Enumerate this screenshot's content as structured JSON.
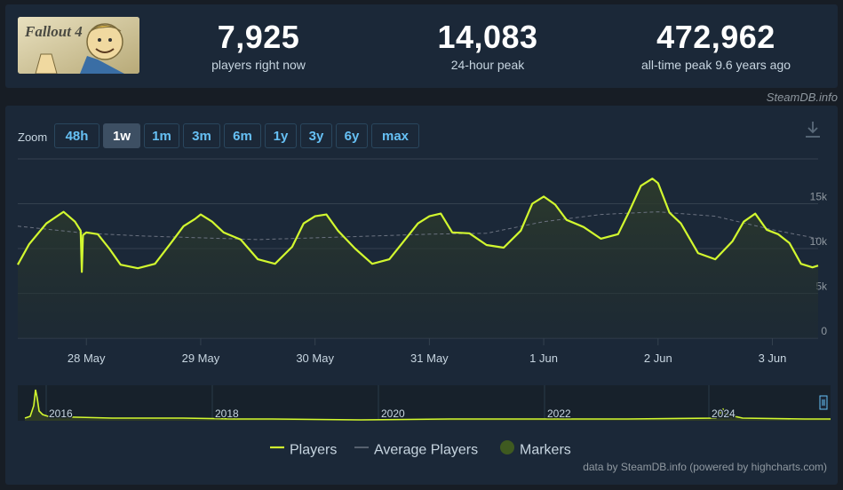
{
  "stats": {
    "current": {
      "value": "7,925",
      "label": "players right now"
    },
    "peak24": {
      "value": "14,083",
      "label": "24-hour peak"
    },
    "alltime": {
      "value": "472,962",
      "label": "all-time peak 9.6 years ago"
    }
  },
  "game_logo_text": "Fallout 4",
  "brand": "SteamDB.info",
  "zoom": {
    "label": "Zoom",
    "options": [
      "48h",
      "1w",
      "1m",
      "3m",
      "6m",
      "1y",
      "3y",
      "6y",
      "max"
    ],
    "selected": "1w"
  },
  "colors": {
    "players": "#d2f82f",
    "average": "#6b7280",
    "markers": "#3f5a20",
    "active_zoom_bg": "#3d4f63",
    "zoom_text": "#66c0f4"
  },
  "icons": {
    "download": "download-icon"
  },
  "legend": [
    {
      "name": "Players",
      "symbol": "line"
    },
    {
      "name": "Average Players",
      "symbol": "dashed-line"
    },
    {
      "name": "Markers",
      "symbol": "circle"
    }
  ],
  "credits": "data by SteamDB.info (powered by highcharts.com)",
  "chart_data": {
    "type": "line",
    "grid": true,
    "y_axis": {
      "ticks": [
        "0",
        "5k",
        "10k",
        "15k"
      ],
      "tick_values": [
        0,
        5000,
        10000,
        15000
      ],
      "ylim": [
        0,
        20000
      ],
      "side": "right"
    },
    "x_axis": {
      "ticks": [
        "28 May",
        "29 May",
        "30 May",
        "31 May",
        "1 Jun",
        "2 Jun",
        "3 Jun"
      ],
      "xlim": [
        -0.6,
        6.4
      ]
    },
    "series": [
      {
        "name": "Players",
        "x": [
          -0.6,
          -0.5,
          -0.35,
          -0.2,
          -0.1,
          -0.05,
          -0.04,
          -0.03,
          0.0,
          0.1,
          0.2,
          0.3,
          0.45,
          0.6,
          0.75,
          0.85,
          0.95,
          1.0,
          1.1,
          1.2,
          1.35,
          1.5,
          1.65,
          1.8,
          1.9,
          2.0,
          2.1,
          2.2,
          2.35,
          2.5,
          2.65,
          2.8,
          2.9,
          3.0,
          3.1,
          3.2,
          3.35,
          3.5,
          3.65,
          3.8,
          3.9,
          4.0,
          4.1,
          4.2,
          4.35,
          4.5,
          4.65,
          4.75,
          4.85,
          4.95,
          5.0,
          5.1,
          5.2,
          5.35,
          5.5,
          5.65,
          5.75,
          5.85,
          5.95,
          6.05,
          6.15,
          6.25,
          6.35,
          6.4
        ],
        "values": [
          8200,
          10500,
          12800,
          14100,
          13000,
          12000,
          7400,
          11500,
          11800,
          11600,
          10000,
          8200,
          7800,
          8300,
          10800,
          12500,
          13300,
          13800,
          13000,
          11800,
          11000,
          8800,
          8300,
          10200,
          12800,
          13600,
          13800,
          12000,
          10000,
          8300,
          8800,
          11200,
          12800,
          13600,
          13900,
          11800,
          11700,
          10400,
          10100,
          12000,
          15000,
          15800,
          14900,
          13200,
          12400,
          11100,
          11600,
          14200,
          17000,
          17800,
          17300,
          14000,
          12800,
          9500,
          8800,
          10800,
          13000,
          13900,
          12100,
          11600,
          10600,
          8300,
          7900,
          8100
        ]
      },
      {
        "name": "Average Players",
        "x": [
          -0.6,
          0.0,
          0.5,
          1.0,
          1.5,
          2.0,
          2.5,
          3.0,
          3.5,
          4.0,
          4.5,
          5.0,
          5.5,
          6.0,
          6.4
        ],
        "values": [
          12500,
          11700,
          11400,
          11200,
          11000,
          11200,
          11400,
          11600,
          11700,
          13000,
          13800,
          14100,
          13600,
          12100,
          11100
        ]
      }
    ],
    "navigator": {
      "year_labels": [
        "2016",
        "2018",
        "2020",
        "2022",
        "2024"
      ]
    }
  }
}
